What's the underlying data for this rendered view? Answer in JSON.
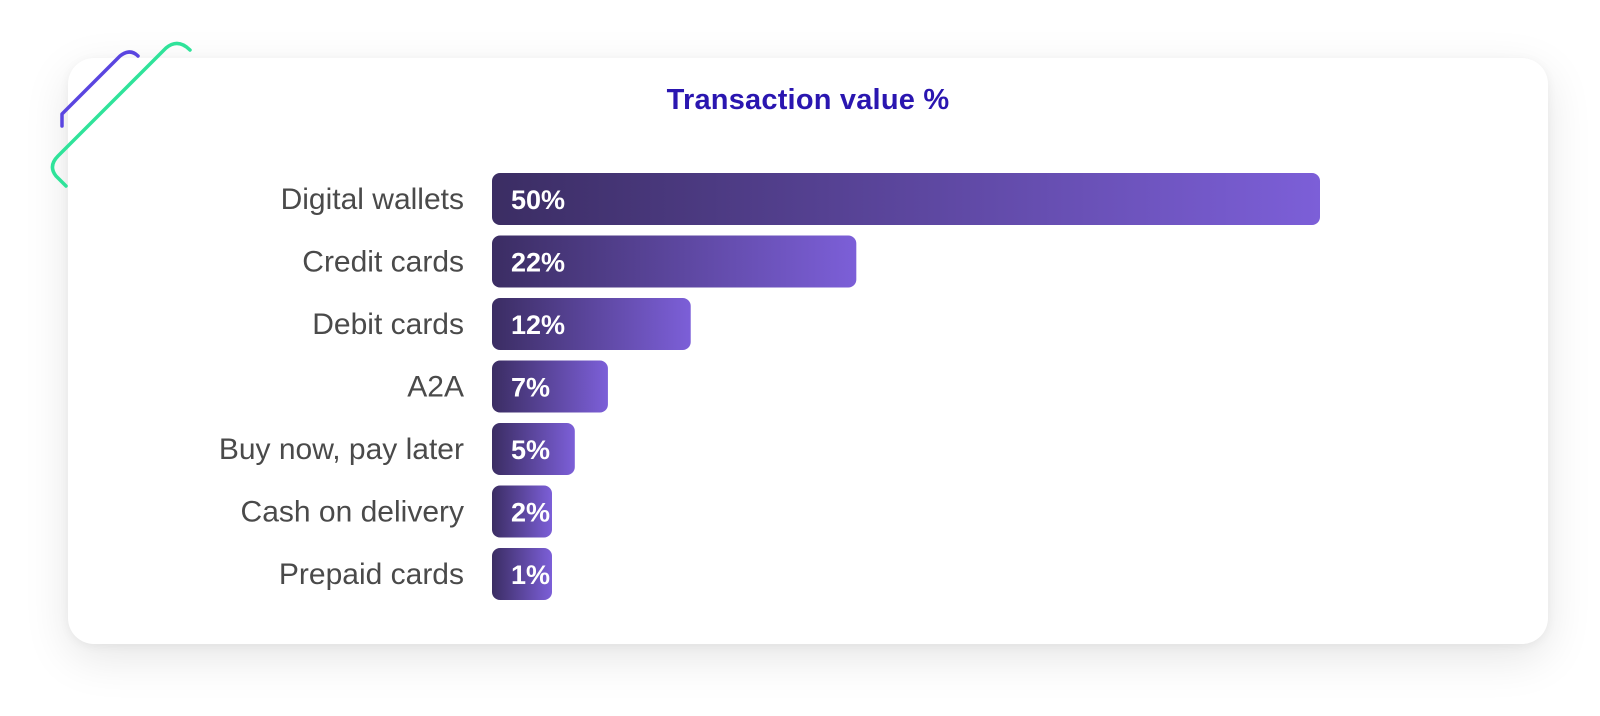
{
  "chart_data": {
    "type": "bar",
    "orientation": "horizontal",
    "title": "Transaction value %",
    "categories": [
      "Digital wallets",
      "Credit cards",
      "Debit cards",
      "A2A",
      "Buy now, pay later",
      "Cash on delivery",
      "Prepaid cards"
    ],
    "values": [
      50,
      22,
      12,
      7,
      5,
      2,
      1
    ],
    "value_labels": [
      "50%",
      "22%",
      "12%",
      "7%",
      "5%",
      "2%",
      "1%"
    ],
    "xlim": [
      0,
      50
    ],
    "grid": false,
    "legend": "none"
  },
  "colors": {
    "title": "#2a16b0",
    "bar_start": "#3b2d63",
    "bar_end": "#7c5fd8",
    "category_text": "#4a4a4a",
    "value_text": "#ffffff",
    "deco_purple": "#5a45e0",
    "deco_green": "#2fe39a"
  }
}
